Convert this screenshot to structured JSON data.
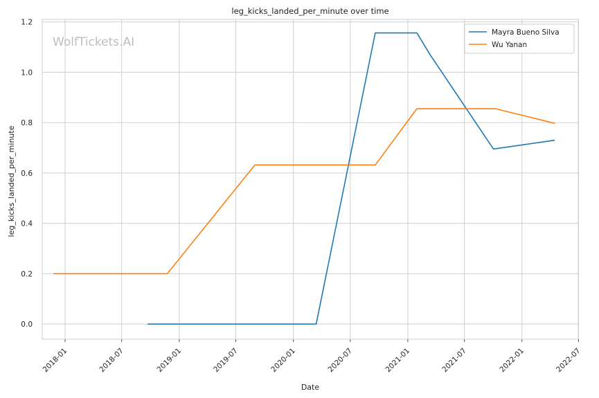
{
  "watermark": "WolfTickets.AI",
  "chart_data": {
    "type": "line",
    "title": "leg_kicks_landed_per_minute over time",
    "xlabel": "Date",
    "ylabel": "leg_kicks_landed_per_minute",
    "xlim": [
      "2017-10-20",
      "2022-06-30"
    ],
    "ylim": [
      -0.06,
      1.21
    ],
    "x_ticks": [
      "2018-01",
      "2018-07",
      "2019-01",
      "2019-07",
      "2020-01",
      "2020-07",
      "2021-01",
      "2021-07",
      "2022-01",
      "2022-07"
    ],
    "y_ticks": [
      "0.0",
      "0.2",
      "0.4",
      "0.6",
      "0.8",
      "1.0",
      "1.2"
    ],
    "grid": true,
    "legend_position": "top-right",
    "series": [
      {
        "name": "Mayra Bueno Silva",
        "color": "#1f77b4",
        "x": [
          "2018-09-22",
          "2020-03-14",
          "2020-09-19",
          "2021-01-30",
          "2021-03-13",
          "2021-10-02",
          "2022-04-16"
        ],
        "y": [
          0.0,
          0.0,
          1.156,
          1.156,
          1.07,
          0.695,
          0.73
        ]
      },
      {
        "name": "Wu Yanan",
        "color": "#ff7f0e",
        "x": [
          "2017-11-25",
          "2018-11-24",
          "2019-08-31",
          "2020-09-19",
          "2021-01-30",
          "2021-10-09",
          "2022-04-16"
        ],
        "y": [
          0.2,
          0.2,
          0.632,
          0.632,
          0.855,
          0.855,
          0.797
        ]
      }
    ]
  }
}
